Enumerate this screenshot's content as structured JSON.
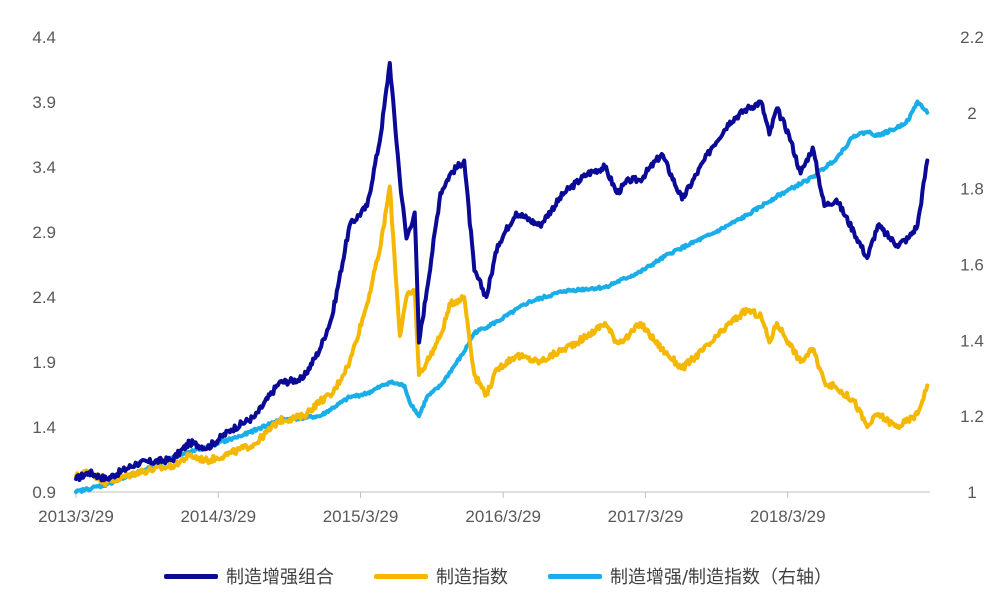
{
  "chart_data": {
    "type": "line",
    "x_tick_labels": [
      "2013/3/29",
      "2014/3/29",
      "2015/3/29",
      "2016/3/29",
      "2017/3/29",
      "2018/3/29"
    ],
    "y_left_ticks": [
      "0.9",
      "1.4",
      "1.9",
      "2.4",
      "2.9",
      "3.4",
      "3.9",
      "4.4"
    ],
    "y_right_ticks": [
      "1",
      "1.2",
      "1.4",
      "1.6",
      "1.8",
      "2",
      "2.2"
    ],
    "y_left_range": [
      0.9,
      4.4
    ],
    "y_right_range": [
      1.0,
      2.2
    ],
    "x_range": [
      "2013-03-29",
      "2019-03-29"
    ],
    "grid": false,
    "legend_position": "bottom",
    "series": [
      {
        "name": "制造增强组合",
        "axis": "left",
        "color": "#0a0a96",
        "x": [
          "2013-03-29",
          "2013-05-01",
          "2013-06-15",
          "2013-09-01",
          "2013-12-01",
          "2014-01-15",
          "2014-03-01",
          "2014-05-01",
          "2014-07-01",
          "2014-09-01",
          "2014-11-01",
          "2014-12-15",
          "2015-01-15",
          "2015-03-01",
          "2015-04-15",
          "2015-05-20",
          "2015-06-12",
          "2015-07-08",
          "2015-07-25",
          "2015-08-15",
          "2015-08-26",
          "2015-09-15",
          "2015-10-20",
          "2015-11-15",
          "2015-12-20",
          "2016-01-15",
          "2016-02-15",
          "2016-03-15",
          "2016-05-01",
          "2016-07-01",
          "2016-09-01",
          "2016-11-01",
          "2016-12-15",
          "2017-01-15",
          "2017-02-15",
          "2017-03-15",
          "2017-05-10",
          "2017-07-01",
          "2017-09-15",
          "2017-11-01",
          "2017-12-15",
          "2018-01-20",
          "2018-02-10",
          "2018-03-01",
          "2018-04-01",
          "2018-05-01",
          "2018-06-01",
          "2018-07-01",
          "2018-08-01",
          "2018-09-15",
          "2018-10-19",
          "2018-11-15",
          "2019-01-03",
          "2019-02-01",
          "2019-02-25",
          "2019-03-22"
        ],
        "values": [
          1.0,
          1.05,
          1.0,
          1.12,
          1.15,
          1.28,
          1.24,
          1.38,
          1.48,
          1.74,
          1.77,
          2.0,
          2.25,
          2.95,
          3.1,
          3.65,
          4.2,
          3.3,
          2.85,
          3.05,
          2.05,
          2.45,
          3.2,
          3.35,
          3.45,
          2.6,
          2.4,
          2.8,
          3.05,
          2.95,
          3.2,
          3.35,
          3.4,
          3.2,
          3.3,
          3.3,
          3.5,
          3.15,
          3.55,
          3.75,
          3.85,
          3.9,
          3.65,
          3.85,
          3.65,
          3.35,
          3.55,
          3.1,
          3.15,
          2.9,
          2.7,
          2.95,
          2.8,
          2.85,
          2.95,
          3.45
        ]
      },
      {
        "name": "制造指数",
        "axis": "left",
        "color": "#f5b800",
        "x": [
          "2013-03-29",
          "2013-05-01",
          "2013-06-15",
          "2013-09-01",
          "2013-12-01",
          "2014-01-15",
          "2014-03-01",
          "2014-05-01",
          "2014-07-01",
          "2014-09-01",
          "2014-11-01",
          "2014-12-15",
          "2015-01-15",
          "2015-03-01",
          "2015-04-15",
          "2015-05-20",
          "2015-06-12",
          "2015-07-08",
          "2015-07-25",
          "2015-08-15",
          "2015-08-26",
          "2015-09-15",
          "2015-10-20",
          "2015-11-15",
          "2015-12-20",
          "2016-01-15",
          "2016-02-15",
          "2016-03-15",
          "2016-05-01",
          "2016-07-01",
          "2016-09-01",
          "2016-11-01",
          "2016-12-15",
          "2017-01-15",
          "2017-02-15",
          "2017-03-15",
          "2017-05-10",
          "2017-07-01",
          "2017-09-15",
          "2017-11-01",
          "2017-12-15",
          "2018-01-20",
          "2018-02-10",
          "2018-03-01",
          "2018-04-01",
          "2018-05-01",
          "2018-06-01",
          "2018-07-01",
          "2018-08-01",
          "2018-09-15",
          "2018-10-19",
          "2018-11-15",
          "2019-01-03",
          "2019-02-01",
          "2019-02-25",
          "2019-03-22"
        ],
        "values": [
          1.02,
          1.06,
          0.97,
          1.05,
          1.1,
          1.18,
          1.14,
          1.2,
          1.27,
          1.45,
          1.48,
          1.6,
          1.65,
          1.9,
          2.35,
          2.8,
          3.25,
          2.1,
          2.4,
          2.45,
          1.8,
          1.9,
          2.1,
          2.35,
          2.4,
          1.8,
          1.65,
          1.85,
          1.95,
          1.9,
          2.0,
          2.1,
          2.2,
          2.05,
          2.1,
          2.2,
          2.0,
          1.85,
          2.05,
          2.2,
          2.3,
          2.25,
          2.05,
          2.2,
          2.05,
          1.9,
          2.0,
          1.75,
          1.7,
          1.6,
          1.4,
          1.5,
          1.4,
          1.45,
          1.5,
          1.72
        ]
      },
      {
        "name": "制造增强/制造指数（右轴）",
        "axis": "right",
        "color": "#1aaee8",
        "x": [
          "2013-03-29",
          "2013-06-15",
          "2013-09-01",
          "2013-12-01",
          "2014-03-01",
          "2014-06-01",
          "2014-09-01",
          "2014-12-15",
          "2015-03-01",
          "2015-04-15",
          "2015-06-12",
          "2015-07-20",
          "2015-08-01",
          "2015-08-26",
          "2015-09-15",
          "2015-10-20",
          "2015-12-20",
          "2016-01-15",
          "2016-03-15",
          "2016-06-01",
          "2016-09-01",
          "2016-12-15",
          "2017-03-15",
          "2017-06-01",
          "2017-09-15",
          "2017-12-15",
          "2018-03-01",
          "2018-06-01",
          "2018-08-01",
          "2018-09-15",
          "2018-10-19",
          "2018-11-15",
          "2019-01-03",
          "2019-02-01",
          "2019-02-25",
          "2019-03-22"
        ],
        "values": [
          1.0,
          1.02,
          1.05,
          1.09,
          1.12,
          1.15,
          1.19,
          1.2,
          1.25,
          1.26,
          1.29,
          1.28,
          1.24,
          1.2,
          1.25,
          1.28,
          1.37,
          1.42,
          1.45,
          1.5,
          1.53,
          1.54,
          1.58,
          1.63,
          1.68,
          1.73,
          1.78,
          1.83,
          1.88,
          1.94,
          1.95,
          1.94,
          1.96,
          1.98,
          2.03,
          2.0
        ]
      }
    ]
  }
}
